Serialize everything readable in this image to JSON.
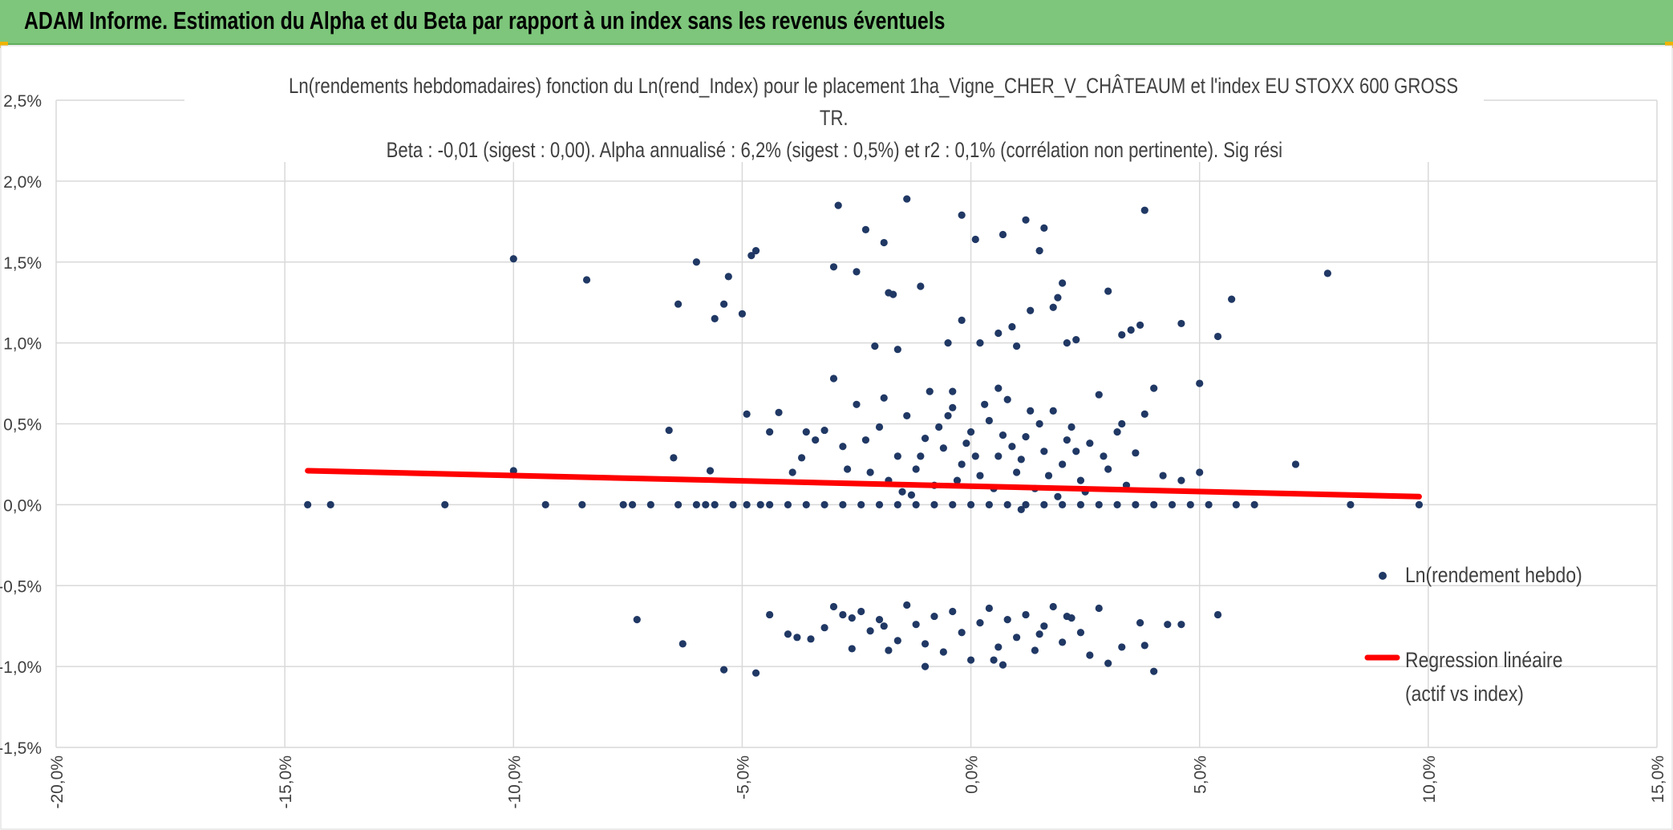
{
  "banner": {
    "title": "ADAM Informe. Estimation du Alpha et du Beta par rapport à un index sans les revenus éventuels"
  },
  "colors": {
    "banner": "#7dc67b",
    "points": "#203864",
    "regression": "#ff0000",
    "grid": "#d9d9d9",
    "text": "#404040"
  },
  "chart_data": {
    "type": "scatter",
    "title_lines": [
      "Ln(rendements hebdomadaires) fonction du Ln(rend_Index) pour le placement 1ha_Vigne_CHER_V_CHÂTEAUM et l'index EU STOXX 600 GROSS",
      "TR.",
      "Beta : -0,01 (sigest : 0,00). Alpha annualisé : 6,2% (sigest : 0,5%) et r2 : 0,1% (corrélation non pertinente). Sig rési"
    ],
    "xlim": [
      -20,
      15
    ],
    "ylim": [
      -1.5,
      2.5
    ],
    "x_ticks": [
      -20,
      -15,
      -10,
      -5,
      0,
      5,
      10,
      15
    ],
    "x_tick_labels": [
      "-20,0%",
      "-15,0%",
      "-10,0%",
      "-5,0%",
      "0,0%",
      "5,0%",
      "10,0%",
      "15,0%"
    ],
    "y_ticks": [
      -1.5,
      -1.0,
      -0.5,
      0.0,
      0.5,
      1.0,
      1.5,
      2.0,
      2.5
    ],
    "y_tick_labels": [
      "-1,5%",
      "-1,0%",
      "-0,5%",
      "0,0%",
      "0,5%",
      "1,0%",
      "1,5%",
      "2,0%",
      "2,5%"
    ],
    "grid": true,
    "legend_position": "right",
    "series": [
      {
        "name": "Ln(rendement hebdo)",
        "type": "scatter",
        "points": [
          [
            -14.5,
            0.0
          ],
          [
            -14.0,
            0.0
          ],
          [
            -11.5,
            0.0
          ],
          [
            -9.3,
            0.0
          ],
          [
            -8.5,
            0.0
          ],
          [
            -7.6,
            0.0
          ],
          [
            -7.4,
            0.0
          ],
          [
            -7.0,
            0.0
          ],
          [
            -6.4,
            0.0
          ],
          [
            -6.0,
            0.0
          ],
          [
            -5.8,
            0.0
          ],
          [
            -5.6,
            0.0
          ],
          [
            -5.2,
            0.0
          ],
          [
            -4.9,
            0.0
          ],
          [
            -4.6,
            0.0
          ],
          [
            -4.4,
            0.0
          ],
          [
            -4.0,
            0.0
          ],
          [
            -3.6,
            0.0
          ],
          [
            -3.2,
            0.0
          ],
          [
            -2.8,
            0.0
          ],
          [
            -2.4,
            0.0
          ],
          [
            -2.0,
            0.0
          ],
          [
            -1.6,
            0.0
          ],
          [
            -1.2,
            0.0
          ],
          [
            -0.8,
            0.0
          ],
          [
            -0.4,
            0.0
          ],
          [
            0.0,
            0.0
          ],
          [
            0.4,
            0.0
          ],
          [
            0.8,
            0.0
          ],
          [
            1.2,
            0.0
          ],
          [
            1.6,
            0.0
          ],
          [
            2.0,
            0.0
          ],
          [
            2.4,
            0.0
          ],
          [
            2.8,
            0.0
          ],
          [
            3.2,
            0.0
          ],
          [
            3.6,
            0.0
          ],
          [
            4.0,
            0.0
          ],
          [
            4.4,
            0.0
          ],
          [
            4.8,
            0.0
          ],
          [
            5.2,
            0.0
          ],
          [
            5.8,
            0.0
          ],
          [
            6.2,
            0.0
          ],
          [
            8.3,
            0.0
          ],
          [
            9.8,
            0.0
          ],
          [
            1.1,
            -0.03
          ],
          [
            -10.0,
            1.52
          ],
          [
            -8.4,
            1.39
          ],
          [
            -6.0,
            1.5
          ],
          [
            -6.4,
            1.24
          ],
          [
            -5.6,
            1.15
          ],
          [
            -5.4,
            1.24
          ],
          [
            -5.3,
            1.41
          ],
          [
            -5.0,
            1.18
          ],
          [
            -4.8,
            1.54
          ],
          [
            -4.7,
            1.57
          ],
          [
            -2.9,
            1.85
          ],
          [
            -2.3,
            1.7
          ],
          [
            -1.4,
            1.89
          ],
          [
            -0.2,
            1.79
          ],
          [
            0.1,
            1.64
          ],
          [
            0.7,
            1.67
          ],
          [
            1.2,
            1.76
          ],
          [
            1.6,
            1.71
          ],
          [
            3.8,
            1.82
          ],
          [
            7.8,
            1.43
          ],
          [
            -3.0,
            1.47
          ],
          [
            -2.5,
            1.44
          ],
          [
            -1.9,
            1.62
          ],
          [
            -1.8,
            1.31
          ],
          [
            -1.7,
            1.3
          ],
          [
            -1.1,
            1.35
          ],
          [
            -0.2,
            1.14
          ],
          [
            0.2,
            1.0
          ],
          [
            0.6,
            1.06
          ],
          [
            1.0,
            0.98
          ],
          [
            1.5,
            1.57
          ],
          [
            1.9,
            1.28
          ],
          [
            2.0,
            1.37
          ],
          [
            2.1,
            1.0
          ],
          [
            2.3,
            1.02
          ],
          [
            3.0,
            1.32
          ],
          [
            3.3,
            1.05
          ],
          [
            3.5,
            1.08
          ],
          [
            3.7,
            1.11
          ],
          [
            4.6,
            1.12
          ],
          [
            5.4,
            1.04
          ],
          [
            5.7,
            1.27
          ],
          [
            -2.1,
            0.98
          ],
          [
            -1.6,
            0.96
          ],
          [
            1.3,
            1.2
          ],
          [
            1.8,
            1.22
          ],
          [
            -0.5,
            1.0
          ],
          [
            0.9,
            1.1
          ],
          [
            -7.3,
            -0.71
          ],
          [
            -6.3,
            -0.86
          ],
          [
            -5.4,
            -1.02
          ],
          [
            -4.7,
            -1.04
          ],
          [
            -4.4,
            -0.68
          ],
          [
            -4.0,
            -0.8
          ],
          [
            -3.8,
            -0.82
          ],
          [
            -3.5,
            -0.83
          ],
          [
            -3.2,
            -0.76
          ],
          [
            -3.0,
            -0.63
          ],
          [
            -2.8,
            -0.68
          ],
          [
            -2.6,
            -0.89
          ],
          [
            -2.4,
            -0.66
          ],
          [
            -2.2,
            -0.78
          ],
          [
            -2.0,
            -0.71
          ],
          [
            -1.8,
            -0.9
          ],
          [
            -1.6,
            -0.84
          ],
          [
            -1.4,
            -0.62
          ],
          [
            -1.2,
            -0.74
          ],
          [
            -1.0,
            -0.86
          ],
          [
            -0.8,
            -0.69
          ],
          [
            -0.6,
            -0.91
          ],
          [
            -0.4,
            -0.66
          ],
          [
            -0.2,
            -0.79
          ],
          [
            0.0,
            -0.96
          ],
          [
            0.2,
            -0.73
          ],
          [
            0.4,
            -0.64
          ],
          [
            0.6,
            -0.88
          ],
          [
            0.8,
            -0.71
          ],
          [
            1.0,
            -0.82
          ],
          [
            1.2,
            -0.68
          ],
          [
            1.4,
            -0.9
          ],
          [
            1.6,
            -0.75
          ],
          [
            1.8,
            -0.63
          ],
          [
            2.0,
            -0.85
          ],
          [
            2.2,
            -0.7
          ],
          [
            2.4,
            -0.79
          ],
          [
            2.6,
            -0.93
          ],
          [
            2.8,
            -0.64
          ],
          [
            3.0,
            -0.98
          ],
          [
            3.3,
            -0.88
          ],
          [
            3.7,
            -0.73
          ],
          [
            4.0,
            -1.03
          ],
          [
            4.3,
            -0.74
          ],
          [
            4.6,
            -0.74
          ],
          [
            5.4,
            -0.68
          ],
          [
            -1.0,
            -1.0
          ],
          [
            0.5,
            -0.96
          ],
          [
            -2.6,
            -0.7
          ],
          [
            -1.9,
            -0.75
          ],
          [
            0.7,
            -0.99
          ],
          [
            1.5,
            -0.8
          ],
          [
            2.1,
            -0.69
          ],
          [
            3.8,
            -0.87
          ],
          [
            -10.0,
            0.21
          ],
          [
            -6.6,
            0.46
          ],
          [
            -6.5,
            0.29
          ],
          [
            -5.7,
            0.21
          ],
          [
            -4.9,
            0.56
          ],
          [
            -4.4,
            0.45
          ],
          [
            -4.2,
            0.57
          ],
          [
            -3.7,
            0.29
          ],
          [
            -3.4,
            0.4
          ],
          [
            -3.2,
            0.46
          ],
          [
            -3.0,
            0.78
          ],
          [
            -2.8,
            0.36
          ],
          [
            -2.5,
            0.62
          ],
          [
            -2.2,
            0.2
          ],
          [
            -2.0,
            0.48
          ],
          [
            -1.8,
            0.15
          ],
          [
            -1.6,
            0.3
          ],
          [
            -1.4,
            0.55
          ],
          [
            -1.2,
            0.22
          ],
          [
            -1.0,
            0.41
          ],
          [
            -0.8,
            0.12
          ],
          [
            -0.6,
            0.35
          ],
          [
            -0.4,
            0.6
          ],
          [
            -0.2,
            0.25
          ],
          [
            0.0,
            0.45
          ],
          [
            0.2,
            0.18
          ],
          [
            0.4,
            0.52
          ],
          [
            0.6,
            0.3
          ],
          [
            0.8,
            0.65
          ],
          [
            1.0,
            0.2
          ],
          [
            1.2,
            0.42
          ],
          [
            1.4,
            0.1
          ],
          [
            1.6,
            0.33
          ],
          [
            1.8,
            0.58
          ],
          [
            2.0,
            0.25
          ],
          [
            2.2,
            0.48
          ],
          [
            2.4,
            0.15
          ],
          [
            2.6,
            0.38
          ],
          [
            2.8,
            0.68
          ],
          [
            3.0,
            0.22
          ],
          [
            3.2,
            0.45
          ],
          [
            3.4,
            0.12
          ],
          [
            3.6,
            0.32
          ],
          [
            3.8,
            0.56
          ],
          [
            4.0,
            0.72
          ],
          [
            4.2,
            0.18
          ],
          [
            4.6,
            0.15
          ],
          [
            5.0,
            0.75
          ],
          [
            5.0,
            0.2
          ],
          [
            7.1,
            0.25
          ],
          [
            -0.9,
            0.7
          ],
          [
            -0.5,
            0.55
          ],
          [
            -0.1,
            0.38
          ],
          [
            0.3,
            0.62
          ],
          [
            0.7,
            0.43
          ],
          [
            1.1,
            0.28
          ],
          [
            1.5,
            0.5
          ],
          [
            -2.7,
            0.22
          ],
          [
            -2.3,
            0.4
          ],
          [
            -1.9,
            0.66
          ],
          [
            -1.5,
            0.08
          ],
          [
            -1.1,
            0.3
          ],
          [
            -0.7,
            0.48
          ],
          [
            -0.3,
            0.15
          ],
          [
            0.1,
            0.3
          ],
          [
            0.5,
            0.1
          ],
          [
            0.9,
            0.36
          ],
          [
            1.3,
            0.58
          ],
          [
            1.7,
            0.18
          ],
          [
            2.1,
            0.4
          ],
          [
            2.5,
            0.08
          ],
          [
            2.9,
            0.3
          ],
          [
            3.3,
            0.5
          ],
          [
            -3.6,
            0.45
          ],
          [
            -3.9,
            0.2
          ],
          [
            -0.4,
            0.7
          ],
          [
            0.6,
            0.72
          ],
          [
            1.9,
            0.05
          ],
          [
            2.3,
            0.33
          ],
          [
            -1.3,
            0.06
          ]
        ]
      },
      {
        "name": "Regression linéaire\n(actif vs index)",
        "type": "line",
        "points": [
          [
            -14.5,
            0.21
          ],
          [
            9.8,
            0.05
          ]
        ]
      }
    ]
  }
}
